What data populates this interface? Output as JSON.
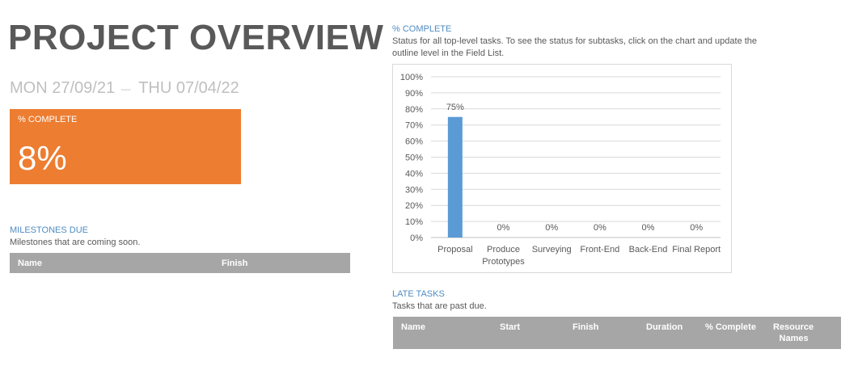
{
  "header": {
    "title": "PROJECT OVERVIEW",
    "start_date": "MON 27/09/21",
    "end_date": "THU 07/04/22"
  },
  "percent_card": {
    "label": "% COMPLETE",
    "value": "8%",
    "color": "#ed7d31"
  },
  "milestones": {
    "title": "MILESTONES DUE",
    "description": "Milestones that are coming soon.",
    "columns": [
      "Name",
      "Finish"
    ]
  },
  "complete_section": {
    "title": "% COMPLETE",
    "description_line1": "Status for all top-level tasks. To see the status for subtasks, click on the chart and update the",
    "description_line2": "outline level in the Field List."
  },
  "late_tasks": {
    "title": "LATE TASKS",
    "description": "Tasks that are past due.",
    "columns": [
      "Name",
      "Start",
      "Finish",
      "Duration",
      "% Complete",
      "Resource",
      "Names"
    ]
  },
  "chart_data": {
    "type": "bar",
    "categories": [
      "Proposal",
      "Produce Prototypes",
      "Surveying",
      "Front-End",
      "Back-End",
      "Final Report"
    ],
    "category_lines": [
      [
        "Proposal"
      ],
      [
        "Produce",
        "Prototypes"
      ],
      [
        "Surveying"
      ],
      [
        "Front-End"
      ],
      [
        "Back-End"
      ],
      [
        "Final Report"
      ]
    ],
    "values": [
      75,
      0,
      0,
      0,
      0,
      0
    ],
    "data_labels": [
      "75%",
      "0%",
      "0%",
      "0%",
      "0%",
      "0%"
    ],
    "ylim": [
      0,
      100
    ],
    "yticks": [
      "0%",
      "10%",
      "20%",
      "30%",
      "40%",
      "50%",
      "60%",
      "70%",
      "80%",
      "90%",
      "100%"
    ],
    "grid": true,
    "bar_color": "#5b9bd5",
    "title": "",
    "xlabel": "",
    "ylabel": ""
  }
}
